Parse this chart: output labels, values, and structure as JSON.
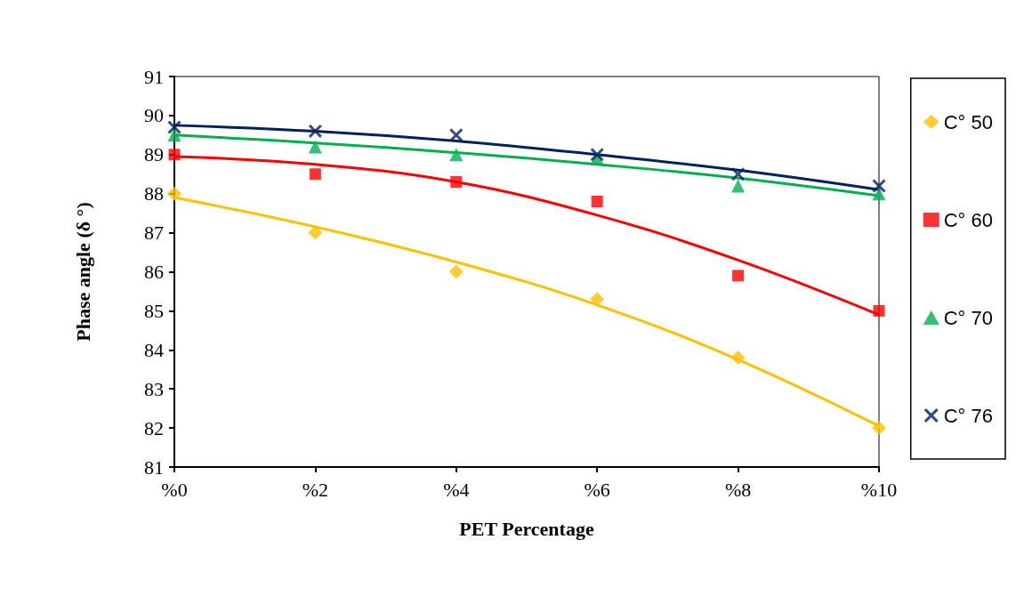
{
  "chart_data": {
    "type": "scatter",
    "xlabel": "PET Percentage",
    "ylabel": "Phase angle (δ °)",
    "xlim": [
      0,
      10
    ],
    "xticks": [
      {
        "value": 0,
        "label": "%0"
      },
      {
        "value": 2,
        "label": "%2"
      },
      {
        "value": 4,
        "label": "%4"
      },
      {
        "value": 6,
        "label": "%6"
      },
      {
        "value": 8,
        "label": "%8"
      },
      {
        "value": 10,
        "label": "%10"
      }
    ],
    "ylim": [
      81,
      91
    ],
    "yticks": [
      81,
      82,
      83,
      84,
      85,
      86,
      87,
      88,
      89,
      90,
      91
    ],
    "legend": "right",
    "x": [
      0,
      2,
      4,
      6,
      8,
      10
    ],
    "series": [
      {
        "type": "line",
        "marker": "none",
        "color": "#ffc000",
        "x": [
          0,
          2,
          4,
          6,
          8,
          10
        ],
        "values": [
          87.9,
          87.15,
          86.25,
          85.15,
          83.75,
          82.05
        ]
      },
      {
        "type": "line",
        "marker": "none",
        "color": "#ff0000",
        "x": [
          0,
          2,
          4,
          6,
          8,
          10
        ],
        "values": [
          88.95,
          88.75,
          88.3,
          87.45,
          86.3,
          84.9
        ]
      },
      {
        "type": "line",
        "marker": "none",
        "color": "#00b050",
        "x": [
          0,
          2,
          4,
          6,
          8,
          10
        ],
        "values": [
          89.5,
          89.3,
          89.05,
          88.75,
          88.4,
          87.95
        ]
      },
      {
        "type": "line",
        "marker": "none",
        "color": "#002060",
        "x": [
          0,
          2,
          4,
          6,
          8,
          10
        ],
        "values": [
          89.75,
          89.6,
          89.35,
          89.0,
          88.6,
          88.1
        ]
      },
      {
        "name": "C° 50",
        "marker": "diamond",
        "color": "#ffc000",
        "values": [
          88,
          87,
          86,
          85.3,
          83.8,
          82
        ]
      },
      {
        "name": "C° 60",
        "marker": "square",
        "color": "#ff0000",
        "values": [
          89,
          88.5,
          88.3,
          87.8,
          85.9,
          85
        ]
      },
      {
        "name": "C° 70",
        "marker": "triangle",
        "color": "#00b050",
        "values": [
          89.5,
          89.2,
          89,
          88.9,
          88.2,
          88
        ]
      },
      {
        "name": "C° 76",
        "marker": "cross",
        "color": "#002060",
        "values": [
          89.7,
          89.6,
          89.5,
          89,
          88.5,
          88.2
        ]
      }
    ]
  }
}
